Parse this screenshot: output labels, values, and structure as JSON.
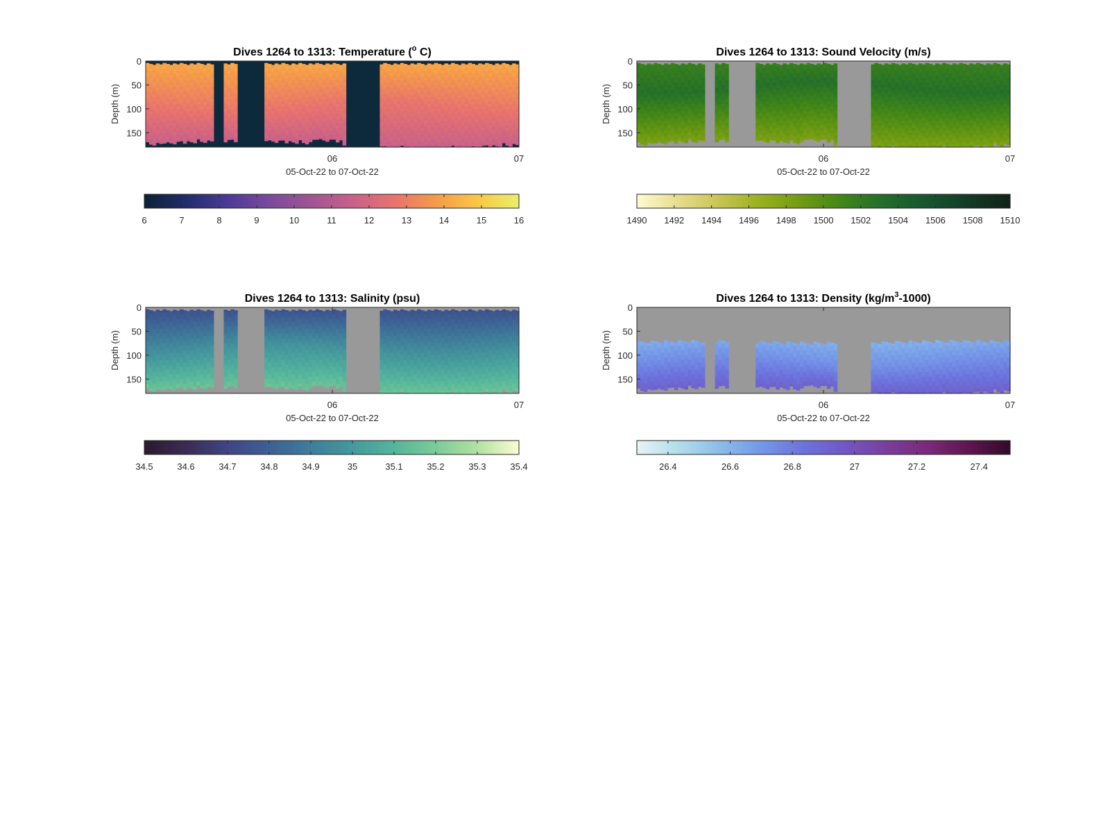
{
  "figure": {
    "background": "#ffffff",
    "missing_color": "#999999"
  },
  "chart_data": [
    {
      "type": "heatmap",
      "id": "temperature",
      "title": {
        "main": "Dives 1264 to 1313: Temperature (",
        "sup": "o",
        "tail": " C)"
      },
      "xlabel": "05-Oct-22 to 07-Oct-22",
      "ylabel": "Depth (m)",
      "x_range_days": [
        0,
        2
      ],
      "x_ticks": [
        {
          "value": 1,
          "label": "06"
        },
        {
          "value": 2,
          "label": "07"
        }
      ],
      "ylim": [
        0,
        180
      ],
      "y_ticks": [
        0,
        50,
        100,
        150
      ],
      "y_reversed": true,
      "missing_fill": "#0d2a3d",
      "colorbar": {
        "range": [
          6,
          16
        ],
        "ticks": [
          "6",
          "7",
          "8",
          "9",
          "10",
          "11",
          "12",
          "13",
          "14",
          "15",
          "16"
        ],
        "colormap": [
          "#0d2136",
          "#1f2d6b",
          "#4c3a96",
          "#7a4a9c",
          "#a05495",
          "#c8608a",
          "#e8736d",
          "#f59a4a",
          "#f9c746",
          "#e9f068"
        ]
      },
      "profile": {
        "surface": 14.2,
        "middle": 12.8,
        "deep": 11.6,
        "middle_depth": 90
      }
    },
    {
      "type": "heatmap",
      "id": "sound-velocity",
      "title": {
        "main": "Dives 1264 to 1313: Sound Velocity (m/s)",
        "sup": "",
        "tail": ""
      },
      "xlabel": "05-Oct-22 to 07-Oct-22",
      "ylabel": "Depth (m)",
      "x_range_days": [
        0,
        2
      ],
      "x_ticks": [
        {
          "value": 1,
          "label": "06"
        },
        {
          "value": 2,
          "label": "07"
        }
      ],
      "ylim": [
        0,
        180
      ],
      "y_ticks": [
        0,
        50,
        100,
        150
      ],
      "y_reversed": true,
      "missing_fill": "#999999",
      "colorbar": {
        "range": [
          1490,
          1510
        ],
        "ticks": [
          "1490",
          "1492",
          "1494",
          "1496",
          "1498",
          "1500",
          "1502",
          "1504",
          "1506",
          "1508",
          "1510"
        ],
        "colormap": [
          "#fdfbd0",
          "#e7dc8e",
          "#c7c452",
          "#98b01d",
          "#6e9a11",
          "#3f8518",
          "#216c2c",
          "#16552e",
          "#133b27",
          "#12221a"
        ]
      },
      "profile": {
        "surface": 1501.5,
        "middle": 1503.0,
        "deep": 1498.2,
        "middle_depth": 55
      }
    },
    {
      "type": "heatmap",
      "id": "salinity",
      "title": {
        "main": "Dives 1264 to 1313: Salinity (psu)",
        "sup": "",
        "tail": ""
      },
      "xlabel": "05-Oct-22 to 07-Oct-22",
      "ylabel": "Depth (m)",
      "x_range_days": [
        0,
        2
      ],
      "x_ticks": [
        {
          "value": 1,
          "label": "06"
        },
        {
          "value": 2,
          "label": "07"
        }
      ],
      "ylim": [
        0,
        180
      ],
      "y_ticks": [
        0,
        50,
        100,
        150
      ],
      "y_reversed": true,
      "missing_fill": "#999999",
      "colorbar": {
        "range": [
          34.5,
          35.4
        ],
        "ticks": [
          "34.5",
          "34.6",
          "34.7",
          "34.8",
          "34.9",
          "35",
          "35.1",
          "35.2",
          "35.3",
          "35.4"
        ],
        "colormap": [
          "#2a1a2c",
          "#3a2c55",
          "#3f4585",
          "#3d6094",
          "#3f7d9a",
          "#45999d",
          "#55b59b",
          "#7acb98",
          "#b3e0a4",
          "#fcfbd1"
        ]
      },
      "profile": {
        "surface": 34.73,
        "middle": 34.98,
        "deep": 35.16,
        "middle_depth": 90
      }
    },
    {
      "type": "heatmap",
      "id": "density",
      "title": {
        "main": "Dives 1264 to 1313: Density (kg/m",
        "sup": "3",
        "tail": "-1000)"
      },
      "xlabel": "05-Oct-22 to 07-Oct-22",
      "ylabel": "Depth (m)",
      "x_range_days": [
        0,
        2
      ],
      "x_ticks": [
        {
          "value": 1,
          "label": "06"
        },
        {
          "value": 2,
          "label": "07"
        }
      ],
      "ylim": [
        0,
        180
      ],
      "y_ticks": [
        0,
        50,
        100,
        150
      ],
      "y_reversed": true,
      "missing_fill": "#999999",
      "mask_top_depth": 70,
      "colorbar": {
        "range": [
          26.3,
          27.5
        ],
        "ticks": [
          "26.4",
          "26.6",
          "26.8",
          "27",
          "27.2",
          "27.4"
        ],
        "tick_values": [
          26.4,
          26.6,
          26.8,
          27.0,
          27.2,
          27.4
        ],
        "colormap": [
          "#e7f4f6",
          "#b3dcea",
          "#8cbde9",
          "#7597e8",
          "#6c73dd",
          "#7158c4",
          "#7a3e9e",
          "#7a2a78",
          "#5e1650",
          "#330a28"
        ]
      },
      "profile": {
        "surface": 26.45,
        "middle": 26.72,
        "deep": 26.92,
        "middle_depth": 110
      }
    }
  ]
}
